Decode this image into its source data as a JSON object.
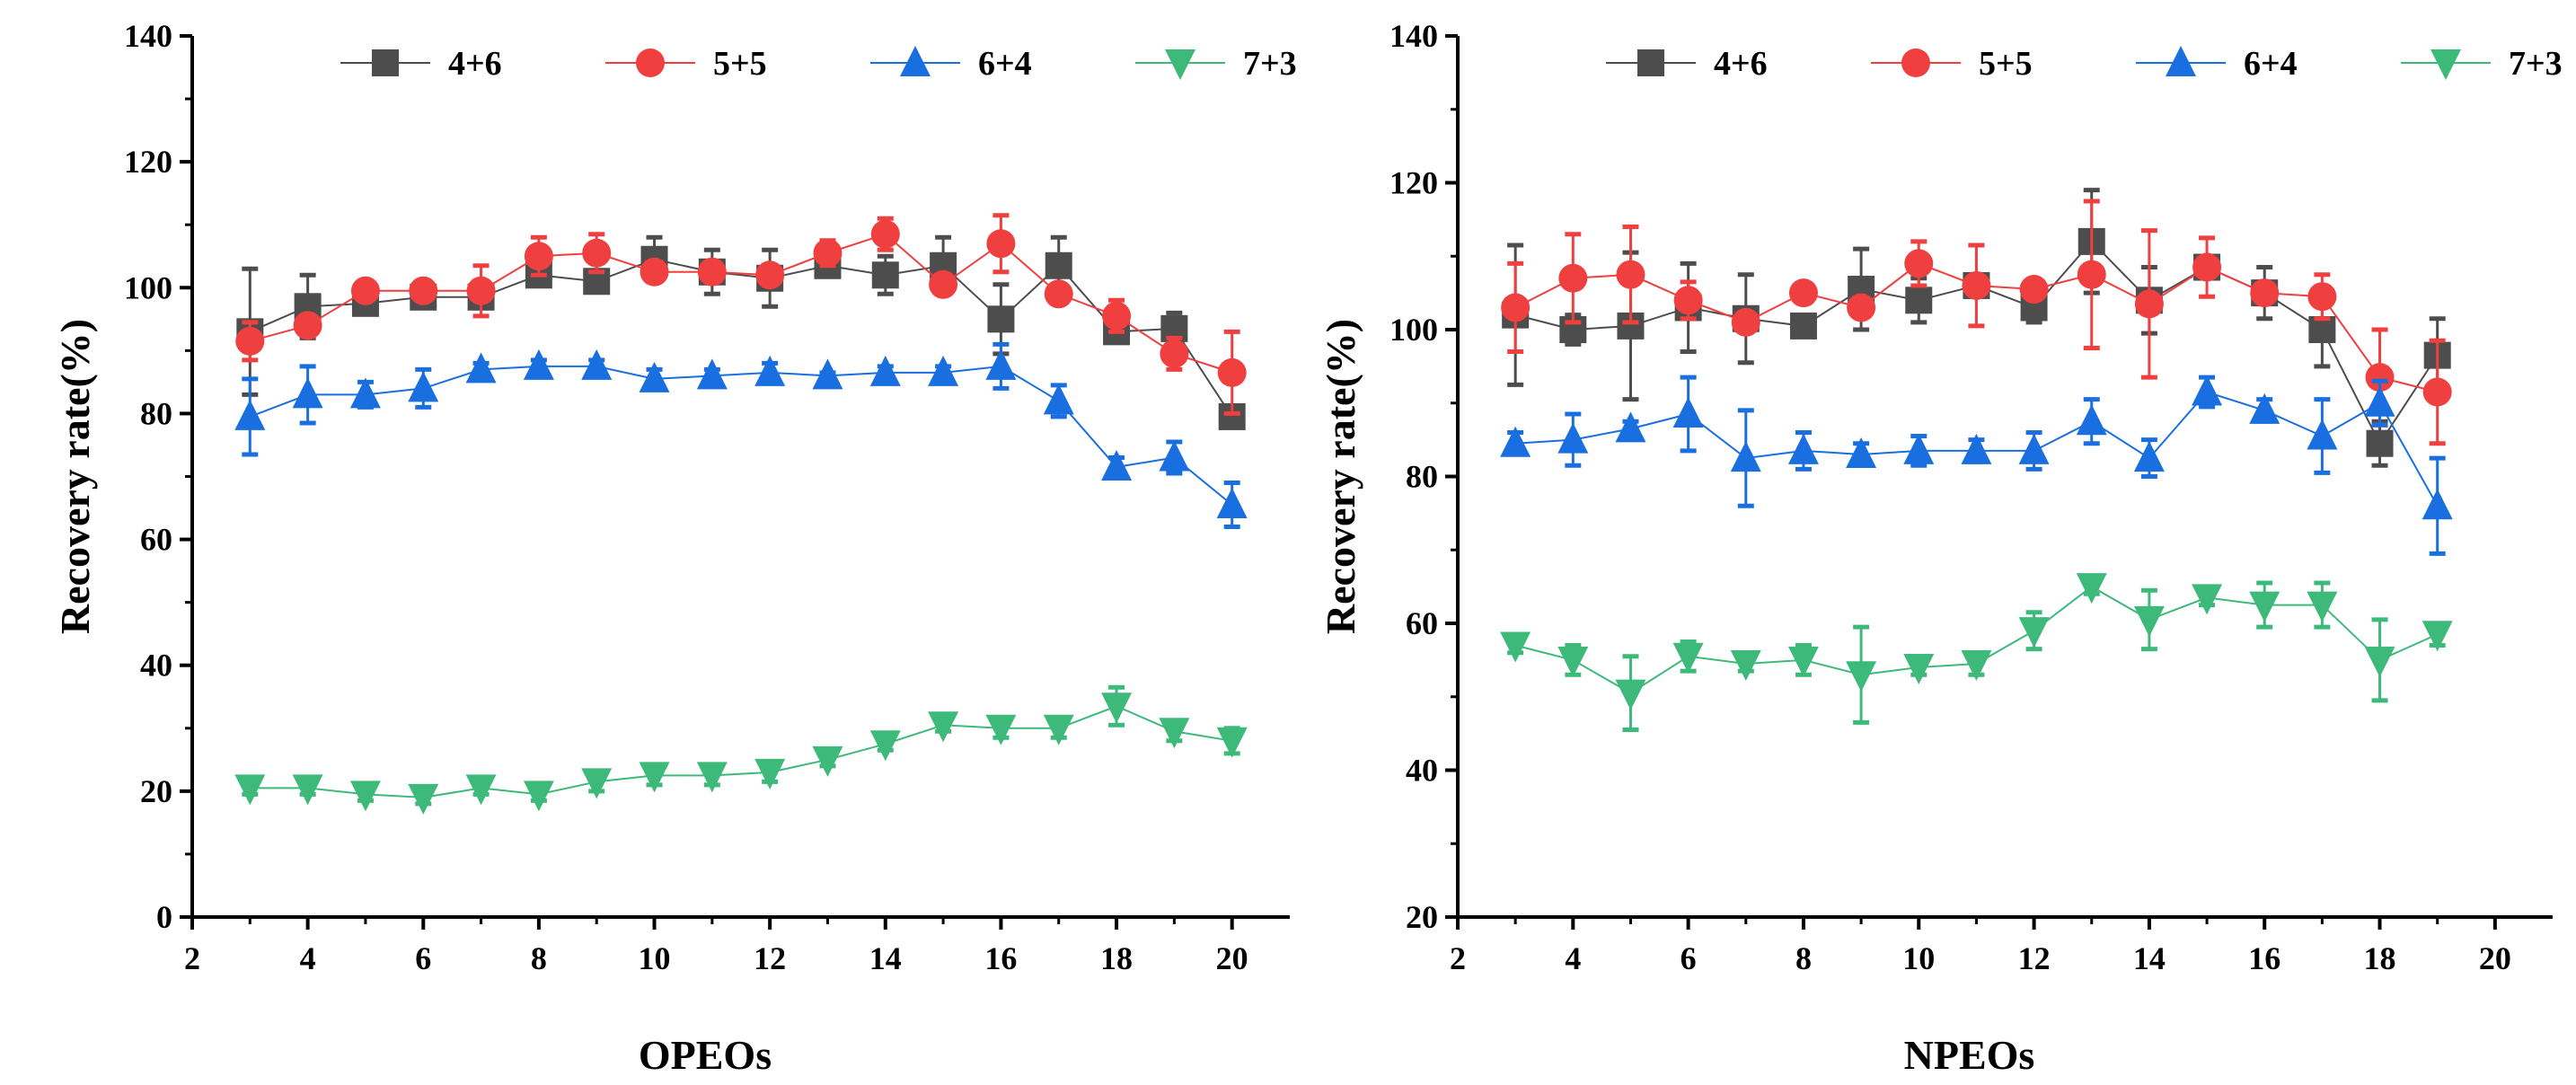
{
  "colors": {
    "4+6": "#4d4d4d",
    "5+5": "#ef3f3f",
    "6+4": "#1a6fe0",
    "7+3": "#3dba7a"
  },
  "chart_data": [
    {
      "type": "line",
      "xlabel": "OPEOs",
      "ylabel": "Recovery rate(%)",
      "xlim": [
        2,
        21
      ],
      "ylim": [
        0,
        140
      ],
      "xticks": [
        2,
        4,
        6,
        8,
        10,
        12,
        14,
        16,
        18,
        20
      ],
      "yticks": [
        0,
        20,
        40,
        60,
        80,
        100,
        120,
        140
      ],
      "legend_position": "top",
      "x": [
        3,
        4,
        5,
        6,
        7,
        8,
        9,
        10,
        11,
        12,
        13,
        14,
        15,
        16,
        17,
        18,
        19,
        20
      ],
      "series": [
        {
          "name": "4+6",
          "marker": "square",
          "values": [
            93,
            97,
            97.5,
            98.5,
            98.5,
            102,
            101,
            104.5,
            102.5,
            101.5,
            103.5,
            102,
            103.5,
            95,
            103.5,
            93,
            93.5,
            79.5
          ],
          "error": [
            10,
            5,
            1.5,
            1,
            1.5,
            1,
            1.5,
            3.5,
            3.5,
            4.5,
            1.5,
            3,
            4.5,
            5.5,
            4.5,
            1,
            2.5,
            1.5
          ]
        },
        {
          "name": "5+5",
          "marker": "circle",
          "values": [
            91.5,
            94,
            99.5,
            99.5,
            99.5,
            105,
            105.5,
            102.5,
            102.5,
            102,
            105.5,
            108.5,
            100.5,
            107,
            99,
            95.5,
            89.5,
            86.5
          ],
          "error": [
            3,
            1,
            1,
            1,
            4,
            3,
            3,
            1,
            1,
            1,
            2,
            2.5,
            1,
            4.5,
            1,
            2.5,
            2.5,
            6.5
          ]
        },
        {
          "name": "6+4",
          "marker": "triangle-up",
          "values": [
            79.5,
            83,
            83,
            84,
            87,
            87.5,
            87.5,
            85.5,
            86,
            86.5,
            86,
            86.5,
            86.5,
            87.5,
            82,
            71.5,
            73,
            65.5
          ],
          "error": [
            6,
            4.5,
            2,
            3,
            1,
            1,
            1,
            1.5,
            1,
            1.5,
            0.5,
            1,
            1,
            3.5,
            2.5,
            1.5,
            2.5,
            3.5
          ]
        },
        {
          "name": "7+3",
          "marker": "triangle-down",
          "values": [
            20.5,
            20.5,
            19.5,
            19,
            20.5,
            19.5,
            21.5,
            22.5,
            22.5,
            23,
            25,
            27.5,
            30.5,
            30,
            30,
            33.5,
            29.5,
            28
          ],
          "error": [
            1,
            1,
            1,
            1,
            1,
            1,
            1.5,
            1.5,
            1.5,
            1.5,
            1,
            1,
            1,
            1.5,
            1.5,
            3,
            1.5,
            2
          ]
        }
      ]
    },
    {
      "type": "line",
      "xlabel": "NPEOs",
      "ylabel": "Recovery rate(%)",
      "xlim": [
        2,
        21
      ],
      "ylim": [
        20,
        140
      ],
      "xticks": [
        2,
        4,
        6,
        8,
        10,
        12,
        14,
        16,
        18,
        20
      ],
      "yticks": [
        20,
        40,
        60,
        80,
        100,
        120,
        140
      ],
      "legend_position": "top",
      "x": [
        3,
        4,
        5,
        6,
        7,
        8,
        9,
        10,
        11,
        12,
        13,
        14,
        15,
        16,
        17,
        18,
        19
      ],
      "series": [
        {
          "name": "4+6",
          "marker": "square",
          "values": [
            102,
            100,
            100.5,
            103,
            101.5,
            100.5,
            105.5,
            104,
            106,
            103,
            112,
            104,
            108.5,
            105,
            100,
            84.5,
            96.5
          ],
          "error": [
            9.5,
            2,
            10,
            6,
            6,
            1,
            5.5,
            3,
            1,
            2,
            7,
            4.5,
            1.5,
            3.5,
            5,
            3,
            5
          ]
        },
        {
          "name": "5+5",
          "marker": "circle",
          "values": [
            103,
            107,
            107.5,
            104,
            101,
            105,
            103,
            109,
            106,
            105.5,
            107.5,
            103.5,
            108.5,
            105,
            104.5,
            93.5,
            91.5
          ],
          "error": [
            6,
            6,
            6.5,
            2.5,
            1,
            1,
            1,
            3,
            5.5,
            1,
            10,
            10,
            4,
            1,
            3,
            6.5,
            7
          ]
        },
        {
          "name": "6+4",
          "marker": "triangle-up",
          "values": [
            84.5,
            85,
            86.5,
            88.5,
            82.5,
            83.5,
            83,
            83.5,
            83.5,
            83.5,
            87.5,
            82.5,
            91.5,
            89,
            85.5,
            90,
            76
          ],
          "error": [
            1.5,
            3.5,
            1,
            5,
            6.5,
            2.5,
            1.5,
            2,
            1.5,
            2.5,
            3,
            2.5,
            2,
            1.5,
            5,
            3,
            6.5
          ]
        },
        {
          "name": "7+3",
          "marker": "triangle-down",
          "values": [
            57,
            55,
            50.5,
            55.5,
            54.5,
            55,
            53,
            54,
            54.5,
            59,
            65,
            60.5,
            63.5,
            62.5,
            62.5,
            55,
            58.5
          ],
          "error": [
            1,
            2,
            5,
            2,
            1,
            2,
            6.5,
            1,
            1.5,
            2.5,
            1,
            4,
            1,
            3,
            3,
            5.5,
            1.5
          ]
        }
      ]
    }
  ]
}
